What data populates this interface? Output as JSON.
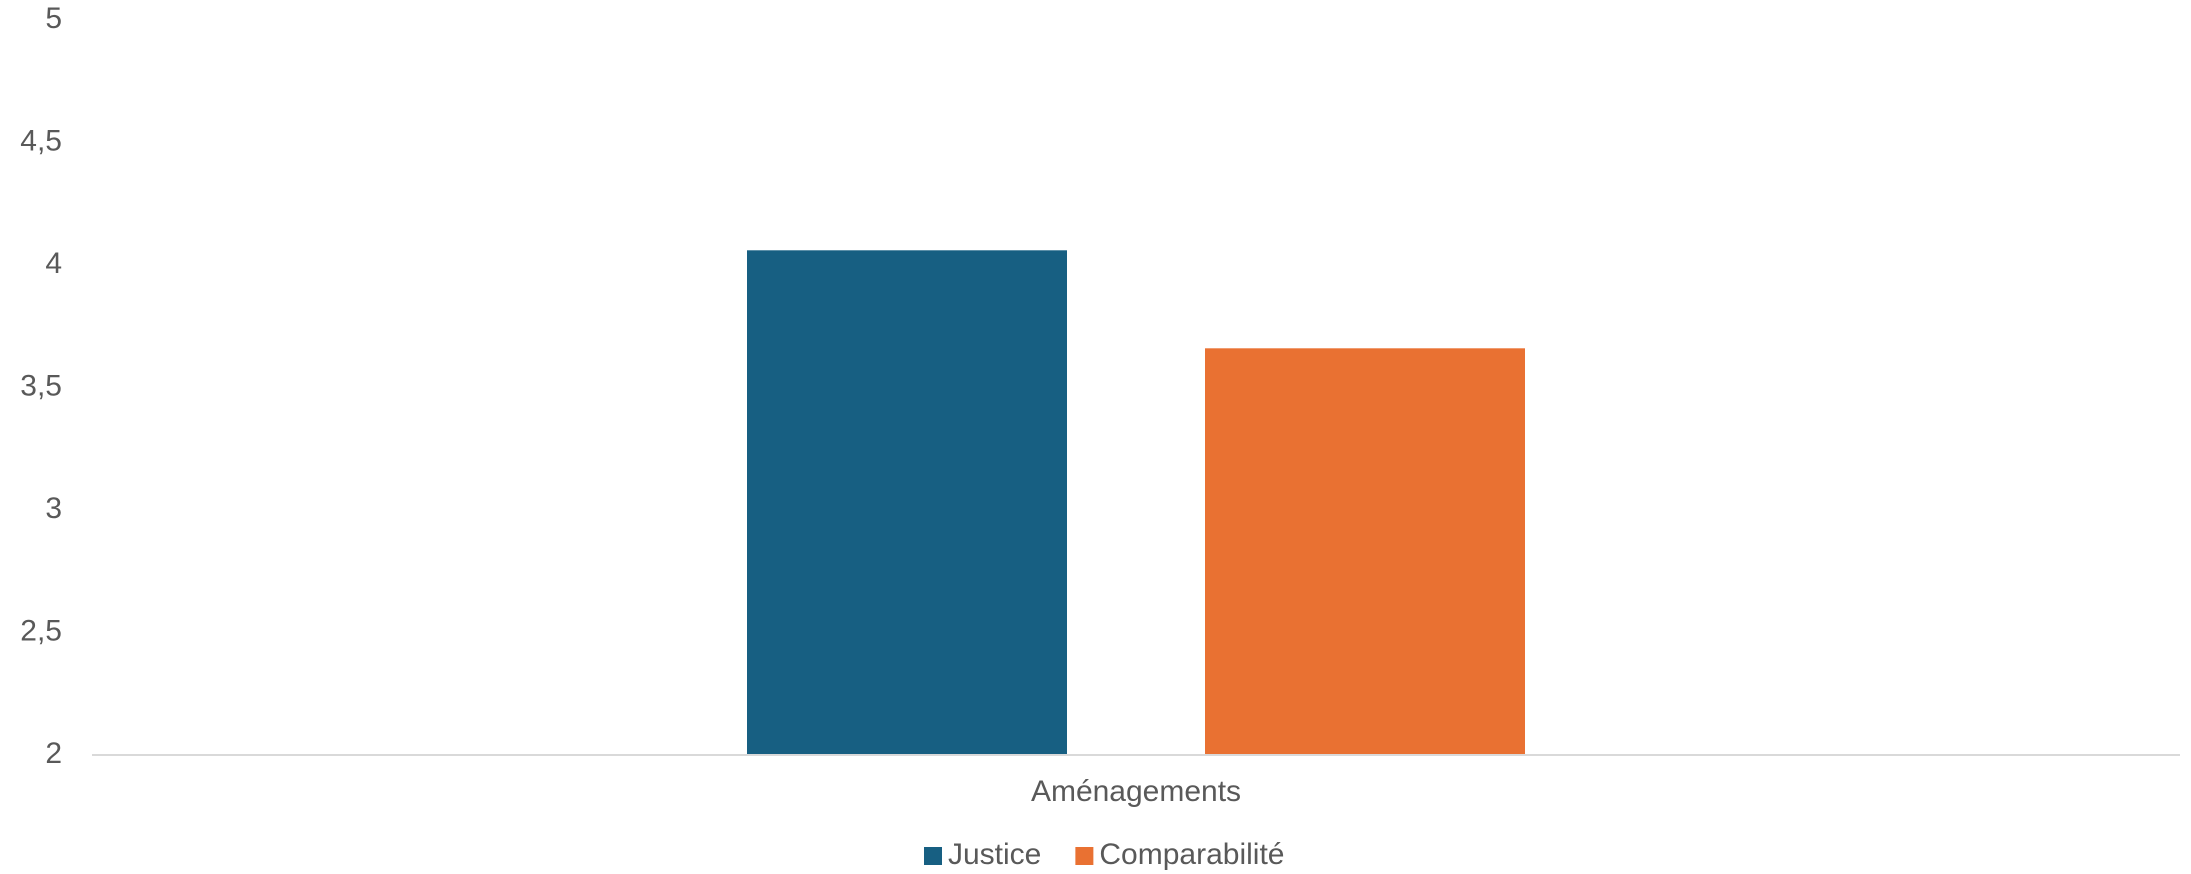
{
  "chart_data": {
    "type": "bar",
    "categories": [
      "Aménagements"
    ],
    "series": [
      {
        "name": "Justice",
        "values": [
          4.06
        ],
        "color": "#175F82"
      },
      {
        "name": "Comparabilité",
        "values": [
          3.66
        ],
        "color": "#E97132"
      }
    ],
    "ylim": [
      2,
      5
    ],
    "yticks": [
      2,
      2.5,
      3,
      3.5,
      4,
      4.5,
      5
    ],
    "ytick_labels": [
      "2",
      "2,5",
      "3",
      "3,5",
      "4",
      "4,5",
      "5"
    ],
    "grid": false,
    "legend_position": "bottom",
    "axis_line_color": "#D9D9D9",
    "text_color": "#595959"
  }
}
